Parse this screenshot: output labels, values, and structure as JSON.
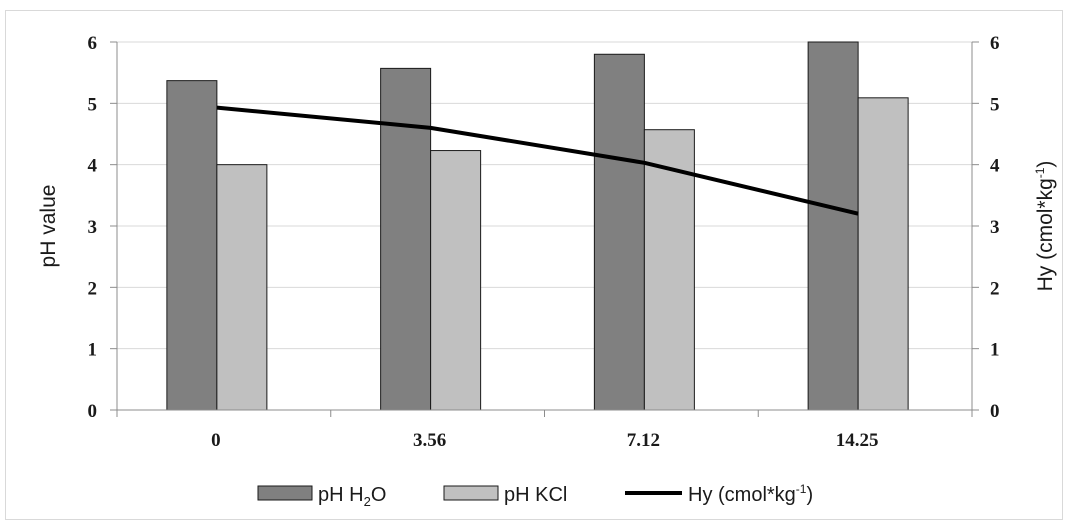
{
  "chart_data": {
    "type": "bar",
    "categories": [
      "0",
      "3.56",
      "7.12",
      "14.25"
    ],
    "series": [
      {
        "name": "pH H2O",
        "kind": "bar",
        "axis": "left",
        "color": "#808080",
        "values": [
          5.37,
          5.57,
          5.8,
          6.0
        ]
      },
      {
        "name": "pH KCl",
        "kind": "bar",
        "axis": "left",
        "color": "#c0c0c0",
        "values": [
          4.0,
          4.23,
          4.57,
          5.09
        ]
      },
      {
        "name": "Hy (cmol*kg-1)",
        "kind": "line",
        "axis": "right",
        "color": "#000000",
        "values": [
          4.93,
          4.6,
          4.03,
          3.2
        ]
      }
    ],
    "ylabel": "pH value",
    "y2label": "Hy (cmol*kg-1)",
    "ylim": [
      0,
      6
    ],
    "y2lim": [
      0,
      6
    ],
    "yticks": [
      "0",
      "1",
      "2",
      "3",
      "4",
      "5",
      "6"
    ],
    "y2ticks": [
      "0",
      "1",
      "2",
      "3",
      "4",
      "5",
      "6"
    ],
    "grid": true,
    "legend_position": "bottom",
    "legend": {
      "ph_h2o_main": "pH H",
      "ph_h2o_sub": "2",
      "ph_h2o_tail": "O",
      "ph_kcl": "pH KCl",
      "hy_main": "Hy (cmol*kg",
      "hy_sup": "-1",
      "hy_tail": ")"
    },
    "y2label_parts": {
      "main": "Hy (cmol*kg",
      "sup": "-1",
      "tail": ")"
    }
  }
}
